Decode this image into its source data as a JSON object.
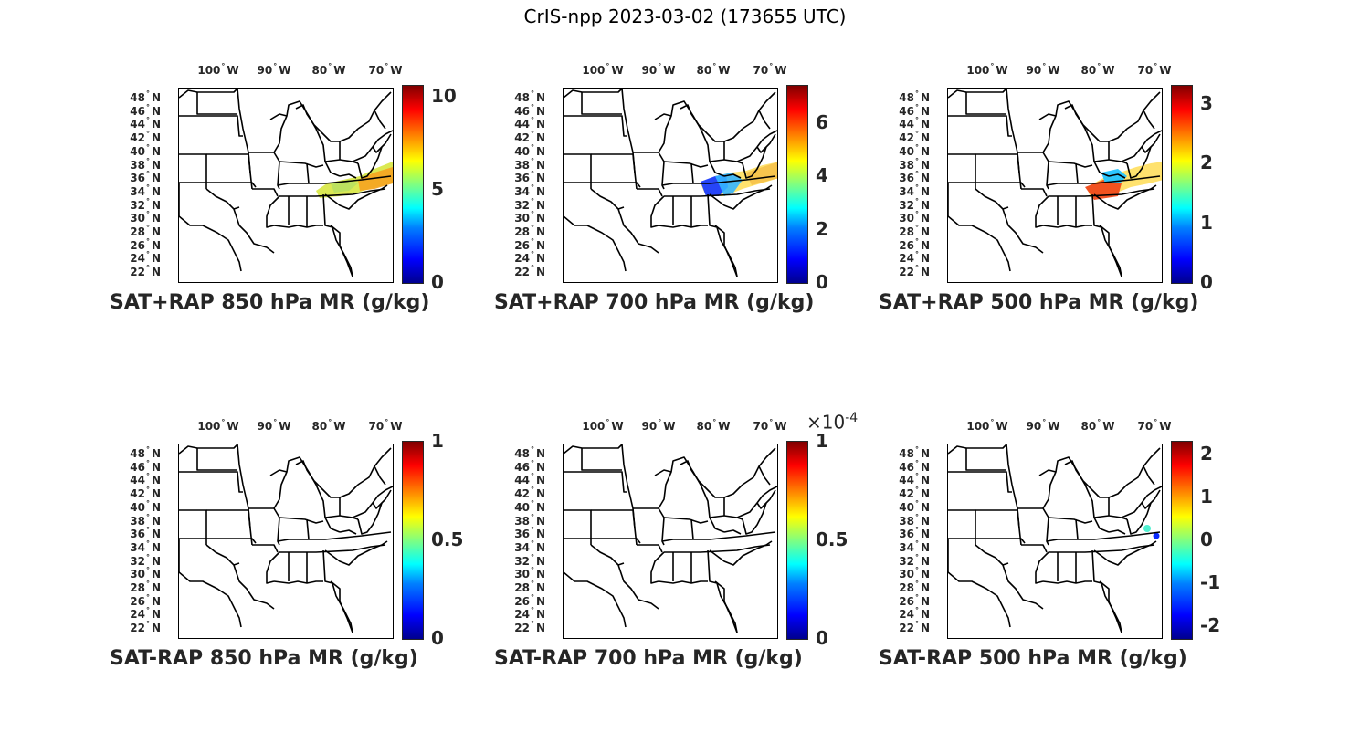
{
  "figure": {
    "suptitle": "CrIS-npp 2023-03-02 (173655 UTC)"
  },
  "axes": {
    "lon_labels": [
      {
        "num": "100",
        "hemi": "W"
      },
      {
        "num": "90",
        "hemi": "W"
      },
      {
        "num": "80",
        "hemi": "W"
      },
      {
        "num": "70",
        "hemi": "W"
      }
    ],
    "lat_labels": [
      {
        "num": "48",
        "hemi": "N"
      },
      {
        "num": "46",
        "hemi": "N"
      },
      {
        "num": "44",
        "hemi": "N"
      },
      {
        "num": "42",
        "hemi": "N"
      },
      {
        "num": "40",
        "hemi": "N"
      },
      {
        "num": "38",
        "hemi": "N"
      },
      {
        "num": "36",
        "hemi": "N"
      },
      {
        "num": "34",
        "hemi": "N"
      },
      {
        "num": "32",
        "hemi": "N"
      },
      {
        "num": "30",
        "hemi": "N"
      },
      {
        "num": "28",
        "hemi": "N"
      },
      {
        "num": "26",
        "hemi": "N"
      },
      {
        "num": "24",
        "hemi": "N"
      },
      {
        "num": "22",
        "hemi": "N"
      }
    ],
    "degree_symbol": "°"
  },
  "panels": [
    {
      "title": "SAT+RAP 850 hPa MR (g/kg)",
      "colorbar": {
        "min": 0,
        "max": 10.6,
        "ticks": [
          "10",
          "5",
          "0"
        ],
        "tick_values": [
          10,
          5,
          0
        ],
        "multiplier": ""
      },
      "overlay": "swath850"
    },
    {
      "title": "SAT+RAP 700 hPa MR (g/kg)",
      "colorbar": {
        "min": 0,
        "max": 7.4,
        "ticks": [
          "6",
          "4",
          "2",
          "0"
        ],
        "tick_values": [
          6,
          4,
          2,
          0
        ],
        "multiplier": ""
      },
      "overlay": "swath700"
    },
    {
      "title": "SAT+RAP 500 hPa MR (g/kg)",
      "colorbar": {
        "min": 0,
        "max": 3.3,
        "ticks": [
          "3",
          "2",
          "1",
          "0"
        ],
        "tick_values": [
          3,
          2,
          1,
          0
        ],
        "multiplier": ""
      },
      "overlay": "swath500"
    },
    {
      "title": "SAT-RAP 850 hPa MR (g/kg)",
      "colorbar": {
        "min": 0,
        "max": 1,
        "ticks": [
          "1",
          "0.5",
          "0"
        ],
        "tick_values": [
          1,
          0.5,
          0
        ],
        "multiplier": ""
      },
      "overlay": "none"
    },
    {
      "title": "SAT-RAP 700 hPa MR (g/kg)",
      "colorbar": {
        "min": 0,
        "max": 1,
        "ticks": [
          "1",
          "0.5",
          "0"
        ],
        "tick_values": [
          1,
          0.5,
          0
        ],
        "multiplier": "×10",
        "multiplier_exp": "-4"
      },
      "overlay": "none"
    },
    {
      "title": "SAT-RAP 500 hPa MR (g/kg)",
      "colorbar": {
        "min": -2.3,
        "max": 2.3,
        "ticks": [
          "2",
          "1",
          "0",
          "-1",
          "-2"
        ],
        "tick_values": [
          2,
          1,
          0,
          -1,
          -2
        ],
        "multiplier": ""
      },
      "overlay": "dots500"
    }
  ]
}
